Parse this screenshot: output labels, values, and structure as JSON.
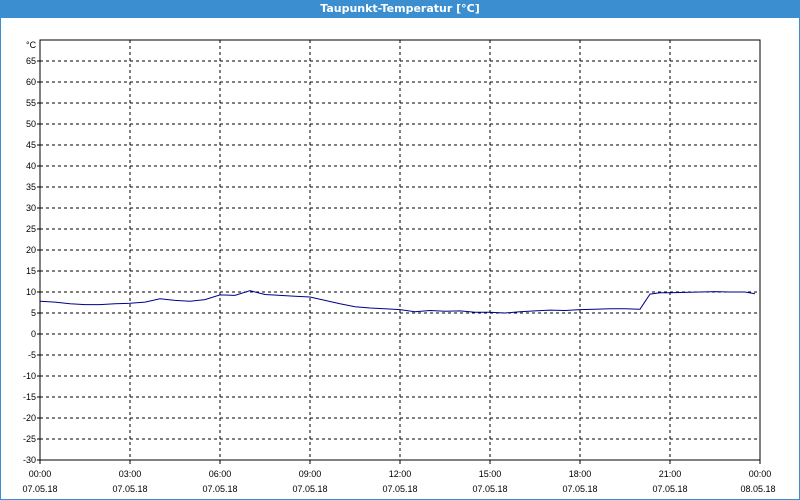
{
  "window": {
    "title": "Taupunkt-Temperatur [°C]"
  },
  "chart_data": {
    "type": "line",
    "title": "Taupunkt-Temperatur [°C]",
    "ylabel": "°C",
    "xlabel": "",
    "ylim": [
      -30,
      70
    ],
    "y_ticks": [
      65,
      60,
      55,
      50,
      45,
      40,
      35,
      30,
      25,
      20,
      15,
      10,
      5,
      0,
      -5,
      -10,
      -15,
      -20,
      -25,
      -30
    ],
    "x_ticks": [
      {
        "time": "00:00",
        "date": "07.05.18"
      },
      {
        "time": "03:00",
        "date": "07.05.18"
      },
      {
        "time": "06:00",
        "date": "07.05.18"
      },
      {
        "time": "09:00",
        "date": "07.05.18"
      },
      {
        "time": "12:00",
        "date": "07.05.18"
      },
      {
        "time": "15:00",
        "date": "07.05.18"
      },
      {
        "time": "18:00",
        "date": "07.05.18"
      },
      {
        "time": "21:00",
        "date": "07.05.18"
      },
      {
        "time": "00:00",
        "date": "08.05.18"
      }
    ],
    "grid": true,
    "line_color": "#00008b",
    "series": [
      {
        "x": [
          "00:00",
          "00:30",
          "01:00",
          "01:30",
          "02:00",
          "02:30",
          "03:00",
          "03:30",
          "04:00",
          "04:30",
          "05:00",
          "05:30",
          "06:00",
          "06:30",
          "07:00",
          "07:30",
          "08:00",
          "08:30",
          "09:00",
          "09:30",
          "10:00",
          "10:30",
          "11:00",
          "11:30",
          "12:00",
          "12:30",
          "13:00",
          "13:30",
          "14:00",
          "14:30",
          "15:00",
          "15:30",
          "16:00",
          "16:30",
          "17:00",
          "17:30",
          "18:00",
          "18:30",
          "19:00",
          "19:30",
          "20:00",
          "20:20",
          "20:40",
          "21:00",
          "21:30",
          "22:00",
          "22:30",
          "23:00",
          "23:30",
          "23:50"
        ],
        "values": [
          7.8,
          7.6,
          7.2,
          7.0,
          7.0,
          7.2,
          7.3,
          7.6,
          8.4,
          8.0,
          7.8,
          8.2,
          9.3,
          9.2,
          10.3,
          9.4,
          9.2,
          9.0,
          8.8,
          8.0,
          7.2,
          6.5,
          6.2,
          6.0,
          5.8,
          5.3,
          5.6,
          5.4,
          5.5,
          5.2,
          5.2,
          5.0,
          5.3,
          5.5,
          5.7,
          5.6,
          5.8,
          5.9,
          6.0,
          6.0,
          5.9,
          9.5,
          9.8,
          9.8,
          9.9,
          10.0,
          10.1,
          10.0,
          10.0,
          9.6
        ]
      }
    ]
  }
}
